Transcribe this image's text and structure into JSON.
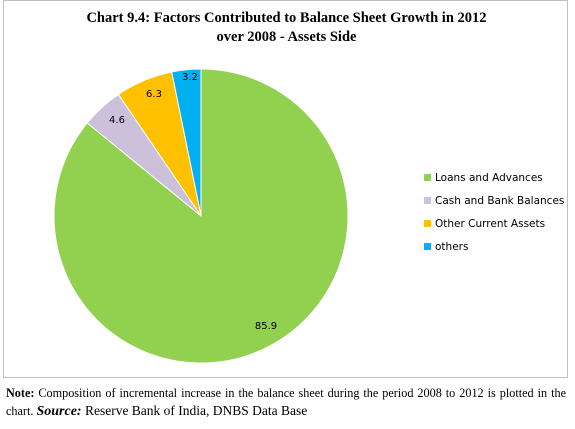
{
  "chart_data": {
    "type": "pie",
    "title": "Chart 9.4: Factors Contributed to Balance Sheet Growth in 2012",
    "subtitle": "over 2008 - Assets Side",
    "categories": [
      "Loans and Advances",
      "Cash and Bank Balances",
      "Other Current Assets",
      "others"
    ],
    "values": [
      85.9,
      4.6,
      6.3,
      3.2
    ],
    "data_labels": [
      "85.9",
      "4.6",
      "6.3",
      "3.2"
    ],
    "colors": [
      "#92d050",
      "#ccc0da",
      "#ffc000",
      "#00b0f0"
    ],
    "legend_position": "right"
  },
  "footer": {
    "note_label": "Note:",
    "note_text": " Composition of incremental increase in the balance sheet during the period 2008 to 2012 is plotted in the chart. ",
    "source_label": "Source:",
    "source_text": " Reserve Bank of India, DNBS Data Base"
  }
}
